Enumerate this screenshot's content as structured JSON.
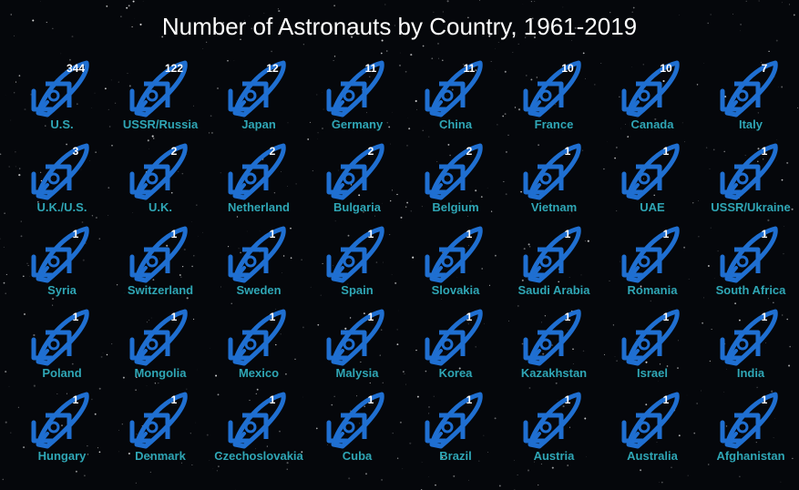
{
  "chart_data": {
    "type": "pictograph",
    "title": "Number of Astronauts by Country, 1961-2019",
    "categories": [
      "U.S.",
      "USSR/Russia",
      "Japan",
      "Germany",
      "China",
      "France",
      "Canada",
      "Italy",
      "U.K./U.S.",
      "U.K.",
      "Netherland",
      "Bulgaria",
      "Belgium",
      "Vietnam",
      "UAE",
      "USSR/Ukraine",
      "Syria",
      "Switzerland",
      "Sweden",
      "Spain",
      "Slovakia",
      "Saudi Arabia",
      "Romania",
      "South Africa",
      "Poland",
      "Mongolia",
      "Mexico",
      "Malysia",
      "Korea",
      "Kazakhstan",
      "Israel",
      "India",
      "Hungary",
      "Denmark",
      "Czechoslovakia",
      "Cuba",
      "Brazil",
      "Austria",
      "Australia",
      "Afghanistan"
    ],
    "values": [
      344,
      122,
      12,
      11,
      11,
      10,
      10,
      7,
      3,
      2,
      2,
      2,
      2,
      1,
      1,
      1,
      1,
      1,
      1,
      1,
      1,
      1,
      1,
      1,
      1,
      1,
      1,
      1,
      1,
      1,
      1,
      1,
      1,
      1,
      1,
      1,
      1,
      1,
      1,
      1
    ],
    "icon": "rocket-icon",
    "colors": {
      "icon": "#1f6fd1",
      "label": "#2fa6b5",
      "count": "#ffffff",
      "title": "#ffffff",
      "background": "#05070b"
    }
  }
}
